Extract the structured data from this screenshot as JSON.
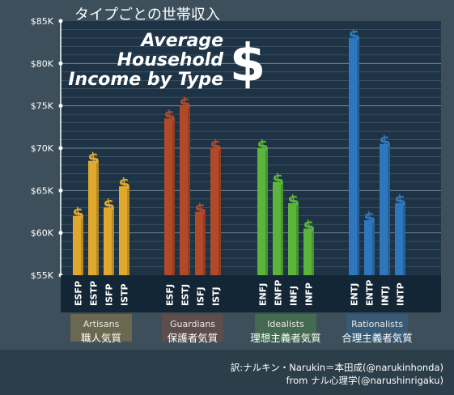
{
  "jp_title": "タイプごとの世帯収入",
  "title_lines": [
    "Average",
    "Household",
    "Income by Type"
  ],
  "dollar_glyph": "$",
  "credit_line1": "訳:ナルキン・Narukin＝本田成(@narukinhonda)",
  "credit_line2": "from ナル心理学(@narushinrigaku)",
  "colors": {
    "background": "#3c4f5a",
    "plot_bg": "#1e3446",
    "grid": "#5a6e7c",
    "label_band": "#132635",
    "artisans": "#e1a82e",
    "guardians": "#b24a2a",
    "idealists": "#5bb53a",
    "rationalists": "#2f77bd"
  },
  "chart_data": {
    "type": "bar",
    "ylim": [
      55000,
      85000
    ],
    "yticks": [
      55000,
      60000,
      65000,
      70000,
      75000,
      80000,
      85000
    ],
    "ytick_labels": [
      "$55K",
      "$60K",
      "$65K",
      "$70K",
      "$75K",
      "$80K",
      "$85K"
    ],
    "groups": [
      {
        "name": "Artisans",
        "jp_name": "職人気質",
        "color": "#e1a82e",
        "bars": [
          {
            "type": "ESFP",
            "value": 62000
          },
          {
            "type": "ESTP",
            "value": 68500
          },
          {
            "type": "ISFP",
            "value": 63000
          },
          {
            "type": "ISTP",
            "value": 65500
          }
        ]
      },
      {
        "name": "Guardians",
        "jp_name": "保護者気質",
        "color": "#b24a2a",
        "bars": [
          {
            "type": "ESFJ",
            "value": 73500
          },
          {
            "type": "ESTJ",
            "value": 75000
          },
          {
            "type": "ISFJ",
            "value": 62500
          },
          {
            "type": "ISTJ",
            "value": 70000
          }
        ]
      },
      {
        "name": "Idealists",
        "jp_name": "理想主義者気質",
        "color": "#5bb53a",
        "bars": [
          {
            "type": "ENFJ",
            "value": 70000
          },
          {
            "type": "ENFP",
            "value": 66000
          },
          {
            "type": "INFJ",
            "value": 63500
          },
          {
            "type": "INFP",
            "value": 60500
          }
        ]
      },
      {
        "name": "Rationalists",
        "jp_name": "合理主義者気質",
        "color": "#2f77bd",
        "bars": [
          {
            "type": "ENTJ",
            "value": 83000
          },
          {
            "type": "ENTP",
            "value": 61500
          },
          {
            "type": "INTJ",
            "value": 70500
          },
          {
            "type": "INTP",
            "value": 63500
          }
        ]
      }
    ]
  }
}
